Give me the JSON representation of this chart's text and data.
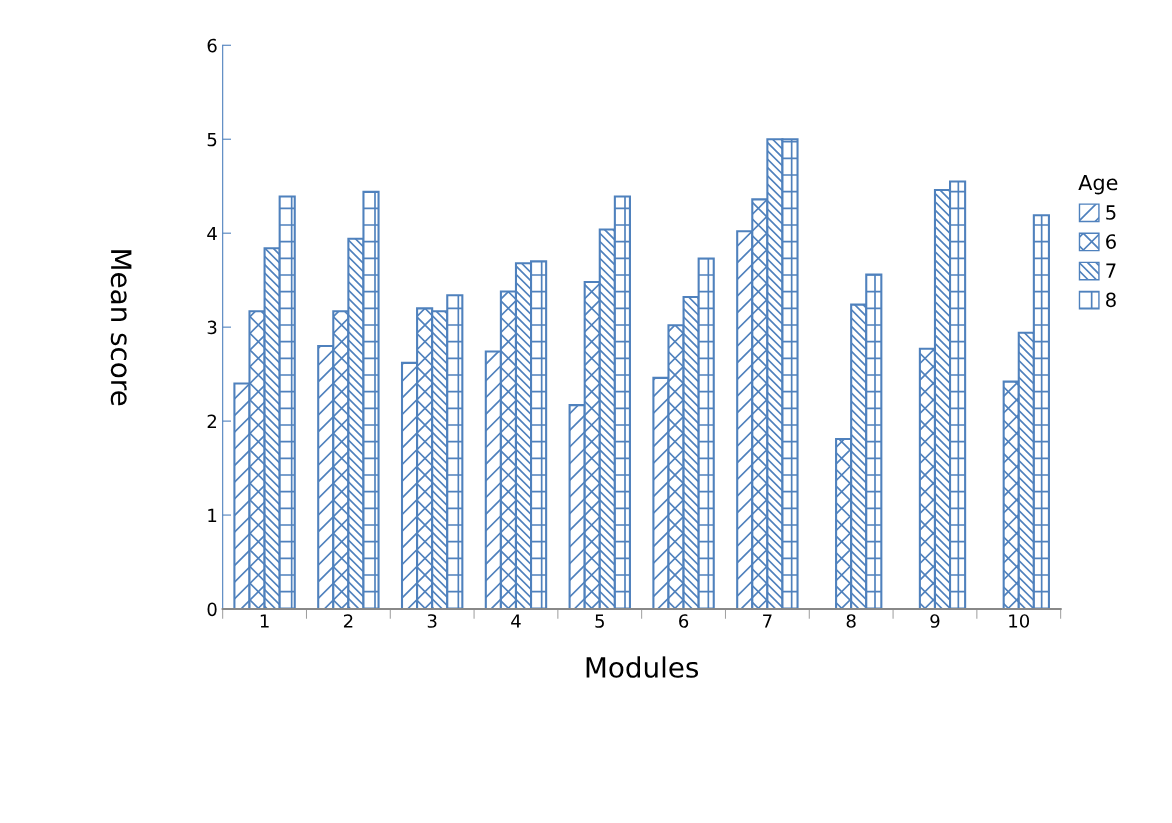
{
  "chart_data": {
    "type": "bar",
    "xlabel": "Modules",
    "ylabel": "Mean score",
    "legend_title": "Age",
    "categories": [
      "1",
      "2",
      "3",
      "4",
      "5",
      "6",
      "7",
      "8",
      "9",
      "10"
    ],
    "series": [
      {
        "name": "5",
        "color": "#4f81bd",
        "values": [
          2.4,
          2.8,
          2.62,
          2.74,
          2.17,
          2.46,
          4.02,
          null,
          null,
          null
        ]
      },
      {
        "name": "6",
        "color": "#4f81bd",
        "values": [
          3.17,
          3.17,
          3.2,
          3.38,
          3.48,
          3.02,
          4.36,
          1.81,
          2.77,
          2.42
        ]
      },
      {
        "name": "7",
        "color": "#4f81bd",
        "values": [
          3.84,
          3.94,
          3.17,
          3.68,
          4.04,
          3.32,
          5.0,
          3.24,
          4.46,
          2.94
        ]
      },
      {
        "name": "8",
        "color": "#4f81bd",
        "values": [
          4.39,
          4.44,
          3.34,
          3.7,
          4.39,
          3.73,
          5.0,
          3.56,
          4.55,
          4.19
        ]
      }
    ],
    "ylim": [
      0,
      6
    ],
    "yticks": [
      0,
      1,
      2,
      3,
      4,
      5,
      6
    ],
    "grid": false,
    "legend": "right"
  }
}
